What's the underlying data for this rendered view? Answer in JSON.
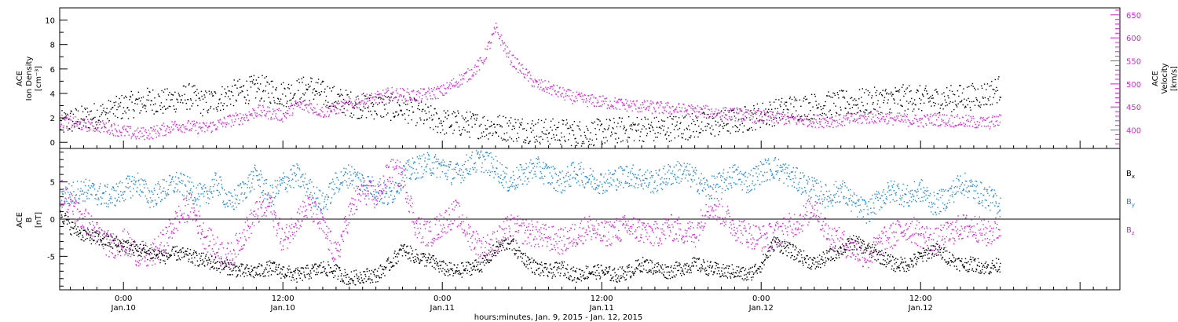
{
  "xlabel": "hours:minutes, Jan. 9, 2015 - Jan. 12, 2015",
  "x_ticks": [
    {
      "time": "0:00",
      "date": "Jan.10",
      "hour": 24
    },
    {
      "time": "12:00",
      "date": "Jan.10",
      "hour": 36
    },
    {
      "time": "0:00",
      "date": "Jan.11",
      "hour": 48
    },
    {
      "time": "12:00",
      "date": "Jan.11",
      "hour": 60
    },
    {
      "time": "0:00",
      "date": "Jan.12",
      "hour": 72
    },
    {
      "time": "12:00",
      "date": "Jan.12",
      "hour": 84
    }
  ],
  "colors": {
    "density": "#000000",
    "velocity": "#e020e0",
    "bx": "#000000",
    "by": "#1e88e5",
    "bz": "#e020e0"
  },
  "panels": {
    "top": {
      "left_label": [
        "ACE",
        "Ion Density",
        "[cm⁻³]"
      ],
      "right_label": [
        "ACE",
        "Velocity",
        "[km/s]"
      ]
    },
    "bottom": {
      "left_label": [
        "ACE",
        "B",
        "[nT]"
      ],
      "legend": [
        "Bx",
        "By",
        "Bz"
      ]
    }
  },
  "chart_data": [
    {
      "type": "scatter",
      "title": "",
      "xlabel": "hours:minutes, Jan. 9, 2015 - Jan. 12, 2015",
      "x_units": "hours since Jan. 9 0:00",
      "xlim": [
        19.2,
        99
      ],
      "left_axis": {
        "label": "ACE Ion Density [cm⁻³]",
        "ylim": [
          -0.5,
          11
        ],
        "ticks": [
          0,
          2,
          4,
          6,
          8,
          10
        ]
      },
      "right_axis": {
        "label": "ACE Velocity [km/s]",
        "ylim": [
          360,
          665
        ],
        "ticks": [
          400,
          450,
          500,
          550,
          600,
          650
        ]
      },
      "series": [
        {
          "name": "Ion Density",
          "axis": "left",
          "x": [
            19.2,
            20,
            21,
            22,
            23,
            24,
            25,
            26,
            27,
            28,
            29,
            30,
            31,
            32,
            33,
            34,
            35,
            36,
            37,
            38,
            39,
            40,
            41,
            42,
            43,
            44,
            45,
            46,
            47,
            48,
            49,
            50,
            51,
            52,
            53,
            54,
            55,
            56,
            57,
            58,
            59,
            60,
            61,
            62,
            63,
            64,
            65,
            66,
            67,
            68,
            69,
            70,
            71,
            72,
            73,
            74,
            75,
            76,
            77,
            78,
            79,
            80,
            81,
            82,
            83,
            84,
            85,
            86,
            87,
            88,
            89,
            90
          ],
          "y": [
            1.5,
            1.8,
            2.0,
            2.3,
            2.5,
            3.0,
            3.2,
            3.5,
            3.3,
            3.6,
            3.8,
            3.2,
            3.5,
            4.0,
            4.2,
            4.5,
            4.3,
            4.0,
            4.2,
            4.5,
            4.0,
            3.5,
            3.2,
            3.0,
            3.0,
            2.9,
            2.8,
            2.5,
            2.0,
            1.7,
            1.6,
            1.5,
            1.4,
            1.3,
            1.2,
            1.1,
            1.0,
            0.9,
            0.9,
            0.8,
            0.8,
            0.9,
            1.0,
            1.1,
            1.2,
            1.1,
            1.2,
            1.3,
            1.4,
            1.5,
            1.6,
            1.8,
            2.0,
            2.3,
            2.5,
            2.8,
            2.9,
            3.0,
            3.1,
            3.2,
            3.3,
            3.4,
            3.5,
            3.6,
            3.7,
            3.6,
            3.5,
            3.6,
            3.7,
            3.8,
            4.0,
            4.5
          ]
        },
        {
          "name": "Velocity",
          "axis": "right",
          "x": [
            19.2,
            20,
            21,
            22,
            23,
            24,
            25,
            26,
            27,
            28,
            29,
            30,
            31,
            32,
            33,
            34,
            35,
            36,
            37,
            38,
            39,
            40,
            41,
            42,
            43,
            44,
            45,
            46,
            47,
            48,
            49,
            50,
            51,
            52,
            53,
            54,
            55,
            56,
            57,
            58,
            59,
            60,
            61,
            62,
            63,
            64,
            65,
            66,
            67,
            68,
            69,
            70,
            71,
            72,
            73,
            74,
            75,
            76,
            77,
            78,
            79,
            80,
            81,
            82,
            83,
            84,
            85,
            86,
            87,
            88,
            89,
            90
          ],
          "y": [
            420,
            418,
            412,
            410,
            405,
            398,
            392,
            395,
            402,
            412,
            408,
            405,
            412,
            422,
            428,
            442,
            438,
            432,
            455,
            452,
            440,
            448,
            455,
            465,
            470,
            480,
            478,
            475,
            480,
            485,
            505,
            522,
            550,
            620,
            560,
            530,
            500,
            492,
            480,
            470,
            465,
            462,
            458,
            455,
            452,
            450,
            448,
            445,
            442,
            440,
            438,
            435,
            432,
            430,
            428,
            425,
            423,
            421,
            420,
            422,
            425,
            428,
            430,
            425,
            423,
            420,
            425,
            422,
            420,
            418,
            416,
            422
          ]
        }
      ]
    },
    {
      "type": "scatter",
      "title": "",
      "xlabel": "hours:minutes, Jan. 9, 2015 - Jan. 12, 2015",
      "x_units": "hours since Jan. 9 0:00",
      "xlim": [
        19.2,
        99
      ],
      "ylabel": "ACE B [nT]",
      "ylim": [
        -9.5,
        9.5
      ],
      "yticks": [
        -5,
        0,
        5
      ],
      "series": [
        {
          "name": "Bx",
          "x": [
            19.2,
            20,
            21,
            22,
            23,
            24,
            25,
            26,
            27,
            28,
            29,
            30,
            31,
            32,
            33,
            34,
            35,
            36,
            37,
            38,
            39,
            40,
            41,
            42,
            43,
            44,
            45,
            46,
            47,
            48,
            49,
            50,
            51,
            52,
            53,
            54,
            55,
            56,
            57,
            58,
            59,
            60,
            61,
            62,
            63,
            64,
            65,
            66,
            67,
            68,
            69,
            70,
            71,
            72,
            73,
            74,
            75,
            76,
            77,
            78,
            79,
            80,
            81,
            82,
            83,
            84,
            85,
            86,
            87,
            88,
            89,
            90
          ],
          "y": [
            1.0,
            -1.0,
            -2.0,
            -2.5,
            -3.0,
            -3.5,
            -4.0,
            -4.5,
            -5.0,
            -4.5,
            -5.0,
            -5.5,
            -6.0,
            -6.5,
            -7.0,
            -7.0,
            -6.5,
            -7.0,
            -7.5,
            -7.0,
            -6.5,
            -7.0,
            -8.0,
            -7.5,
            -7.5,
            -6.0,
            -4.0,
            -5.0,
            -5.5,
            -6.5,
            -7.0,
            -6.5,
            -6.0,
            -4.0,
            -3.0,
            -5.0,
            -6.5,
            -7.0,
            -6.5,
            -7.5,
            -7.0,
            -7.0,
            -7.5,
            -7.0,
            -6.0,
            -6.5,
            -7.0,
            -6.5,
            -6.0,
            -6.5,
            -7.0,
            -7.0,
            -7.5,
            -6.0,
            -3.0,
            -4.0,
            -5.0,
            -6.0,
            -5.0,
            -4.0,
            -3.0,
            -4.0,
            -5.0,
            -6.0,
            -6.0,
            -5.0,
            -4.0,
            -5.0,
            -6.0,
            -6.0,
            -6.5,
            -6.0
          ]
        },
        {
          "name": "By",
          "x": [
            19.2,
            20,
            21,
            22,
            23,
            24,
            25,
            26,
            27,
            28,
            29,
            30,
            31,
            32,
            33,
            34,
            35,
            36,
            37,
            38,
            39,
            40,
            41,
            42,
            43,
            44,
            45,
            46,
            47,
            48,
            49,
            50,
            51,
            52,
            53,
            54,
            55,
            56,
            57,
            58,
            59,
            60,
            61,
            62,
            63,
            64,
            65,
            66,
            67,
            68,
            69,
            70,
            71,
            72,
            73,
            74,
            75,
            76,
            77,
            78,
            79,
            80,
            81,
            82,
            83,
            84,
            85,
            86,
            87,
            88,
            89,
            90
          ],
          "y": [
            3.0,
            3.5,
            4.0,
            3.5,
            3.0,
            4.0,
            5.0,
            3.0,
            4.0,
            5.0,
            4.0,
            3.0,
            5.0,
            2.0,
            4.0,
            6.0,
            3.0,
            5.0,
            6.0,
            4.0,
            2.0,
            5.0,
            6.0,
            5.0,
            4.0,
            3.0,
            6.0,
            7.0,
            7.5,
            7.0,
            6.0,
            7.5,
            8.0,
            7.0,
            5.0,
            6.0,
            7.0,
            6.0,
            5.0,
            6.5,
            5.5,
            5.0,
            5.5,
            6.0,
            5.5,
            5.0,
            6.0,
            6.5,
            5.5,
            4.0,
            5.0,
            6.0,
            5.0,
            6.5,
            7.0,
            6.0,
            5.0,
            4.0,
            3.0,
            4.0,
            2.0,
            1.0,
            3.0,
            4.0,
            3.0,
            4.0,
            2.0,
            3.0,
            5.0,
            4.0,
            3.0,
            2.0
          ]
        },
        {
          "name": "Bz",
          "x": [
            19.2,
            20,
            21,
            22,
            23,
            24,
            25,
            26,
            27,
            28,
            29,
            30,
            31,
            32,
            33,
            34,
            35,
            36,
            37,
            38,
            39,
            40,
            41,
            42,
            43,
            44,
            45,
            46,
            47,
            48,
            49,
            50,
            51,
            52,
            53,
            54,
            55,
            56,
            57,
            58,
            59,
            60,
            61,
            62,
            63,
            64,
            65,
            66,
            67,
            68,
            69,
            70,
            71,
            72,
            73,
            74,
            75,
            76,
            77,
            78,
            79,
            80,
            81,
            82,
            83,
            84,
            85,
            86,
            87,
            88,
            89,
            90
          ],
          "y": [
            4.0,
            2.0,
            0.0,
            -2.0,
            -3.5,
            -3.0,
            -4.5,
            -5.0,
            -3.0,
            0.0,
            2.0,
            -2.0,
            -4.0,
            -5.0,
            -2.0,
            1.0,
            2.0,
            -3.0,
            0.0,
            2.0,
            -1.0,
            -5.0,
            1.0,
            4.0,
            3.0,
            6.5,
            6.0,
            -1.0,
            -2.0,
            -0.5,
            1.0,
            -2.0,
            -4.0,
            -3.0,
            -1.0,
            -1.5,
            -2.0,
            -2.5,
            -3.0,
            -2.0,
            -1.0,
            -2.0,
            -1.5,
            -1.0,
            -1.5,
            -2.0,
            -1.0,
            -1.5,
            -2.0,
            2.0,
            1.0,
            -1.0,
            -2.0,
            -2.5,
            -2.0,
            -1.0,
            0.0,
            2.0,
            -2.0,
            -3.0,
            -4.0,
            -5.0,
            -3.0,
            -2.0,
            -1.0,
            -2.0,
            -3.0,
            -2.0,
            -1.0,
            -1.0,
            -2.0,
            -1.0
          ]
        }
      ]
    }
  ]
}
